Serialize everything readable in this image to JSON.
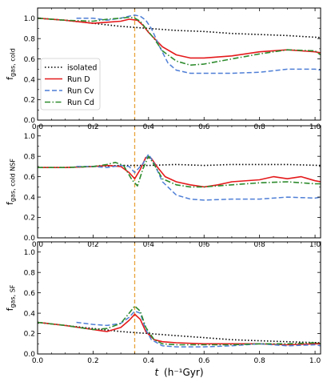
{
  "chart_data": {
    "type": "line",
    "xlabel_symbol": "t",
    "xlabel_unit": "(h⁻¹Gyr)",
    "xlim": [
      0.0,
      1.02
    ],
    "x_ticks": [
      "0.0",
      "0.2",
      "0.4",
      "0.6",
      "0.8",
      "1.0"
    ],
    "x_tick_values": [
      0.0,
      0.2,
      0.4,
      0.6,
      0.8,
      1.0
    ],
    "vline_x": 0.35,
    "colors": {
      "isolated": "#000000",
      "run_d": "#e41a1c",
      "run_cv": "#4f7fd6",
      "run_cd": "#2e8b2e",
      "vline": "#e8a33a"
    },
    "legend": {
      "placement": "left",
      "entries": [
        {
          "label": "isolated",
          "key": "isolated"
        },
        {
          "label": "Run D",
          "key": "run_d"
        },
        {
          "label": "Run Cv",
          "key": "run_cv"
        },
        {
          "label": "Run Cd",
          "key": "run_cd"
        }
      ]
    },
    "panels": [
      {
        "ylabel_main": "f",
        "ylabel_sub": "gas, cold",
        "ylim": [
          0,
          1.1
        ],
        "y_ticks": [
          "0.0",
          "0.2",
          "0.4",
          "0.6",
          "0.8",
          "1.0"
        ],
        "y_tick_values": [
          0,
          0.2,
          0.4,
          0.6,
          0.8,
          1.0
        ],
        "series": [
          {
            "key": "isolated",
            "x": [
              0.0,
              0.1,
              0.2,
              0.3,
              0.35,
              0.4,
              0.5,
              0.6,
              0.7,
              0.8,
              0.9,
              1.02
            ],
            "y": [
              1.0,
              0.98,
              0.95,
              0.92,
              0.91,
              0.9,
              0.88,
              0.87,
              0.85,
              0.84,
              0.83,
              0.81
            ]
          },
          {
            "key": "run_d",
            "x": [
              0.0,
              0.1,
              0.2,
              0.25,
              0.3,
              0.33,
              0.36,
              0.38,
              0.4,
              0.45,
              0.5,
              0.55,
              0.6,
              0.7,
              0.8,
              0.9,
              1.0,
              1.02
            ],
            "y": [
              1.0,
              0.98,
              0.95,
              0.96,
              0.97,
              0.99,
              0.98,
              0.93,
              0.86,
              0.72,
              0.64,
              0.61,
              0.61,
              0.63,
              0.67,
              0.69,
              0.67,
              0.66
            ]
          },
          {
            "key": "run_cv",
            "x": [
              0.14,
              0.2,
              0.25,
              0.3,
              0.33,
              0.35,
              0.37,
              0.39,
              0.41,
              0.44,
              0.47,
              0.5,
              0.55,
              0.6,
              0.7,
              0.8,
              0.9,
              1.0,
              1.02
            ],
            "y": [
              1.0,
              1.0,
              0.98,
              1.0,
              1.02,
              1.03,
              1.02,
              0.98,
              0.9,
              0.72,
              0.56,
              0.49,
              0.46,
              0.46,
              0.46,
              0.47,
              0.5,
              0.5,
              0.49
            ]
          },
          {
            "key": "run_cd",
            "x": [
              0.0,
              0.1,
              0.2,
              0.25,
              0.3,
              0.33,
              0.35,
              0.37,
              0.39,
              0.42,
              0.45,
              0.5,
              0.55,
              0.6,
              0.7,
              0.8,
              0.9,
              1.0,
              1.02
            ],
            "y": [
              1.0,
              0.98,
              0.97,
              0.99,
              1.0,
              1.01,
              1.0,
              0.97,
              0.9,
              0.8,
              0.68,
              0.58,
              0.54,
              0.55,
              0.6,
              0.65,
              0.69,
              0.68,
              0.64
            ]
          }
        ]
      },
      {
        "ylabel_main": "f",
        "ylabel_sub": "gas, cold NSF",
        "ylim": [
          0,
          1.1
        ],
        "y_ticks": [
          "0.0",
          "0.2",
          "0.4",
          "0.6",
          "0.8",
          "1.0"
        ],
        "y_tick_values": [
          0,
          0.2,
          0.4,
          0.6,
          0.8,
          1.0
        ],
        "series": [
          {
            "key": "isolated",
            "x": [
              0.0,
              0.1,
              0.2,
              0.3,
              0.4,
              0.5,
              0.6,
              0.7,
              0.8,
              0.9,
              1.02
            ],
            "y": [
              0.69,
              0.69,
              0.7,
              0.71,
              0.71,
              0.72,
              0.71,
              0.72,
              0.72,
              0.72,
              0.71
            ]
          },
          {
            "key": "run_d",
            "x": [
              0.0,
              0.1,
              0.2,
              0.25,
              0.3,
              0.33,
              0.35,
              0.37,
              0.39,
              0.41,
              0.43,
              0.46,
              0.5,
              0.55,
              0.6,
              0.65,
              0.7,
              0.8,
              0.85,
              0.9,
              0.95,
              1.0,
              1.02
            ],
            "y": [
              0.69,
              0.69,
              0.7,
              0.71,
              0.7,
              0.64,
              0.58,
              0.67,
              0.79,
              0.78,
              0.7,
              0.6,
              0.55,
              0.52,
              0.5,
              0.52,
              0.55,
              0.57,
              0.6,
              0.58,
              0.6,
              0.56,
              0.55
            ]
          },
          {
            "key": "run_cv",
            "x": [
              0.14,
              0.2,
              0.25,
              0.3,
              0.33,
              0.35,
              0.38,
              0.4,
              0.42,
              0.45,
              0.5,
              0.55,
              0.6,
              0.7,
              0.8,
              0.9,
              1.0,
              1.02
            ],
            "y": [
              0.7,
              0.7,
              0.69,
              0.71,
              0.7,
              0.64,
              0.73,
              0.82,
              0.73,
              0.55,
              0.42,
              0.38,
              0.37,
              0.38,
              0.38,
              0.4,
              0.39,
              0.4
            ]
          },
          {
            "key": "run_cd",
            "x": [
              0.0,
              0.1,
              0.2,
              0.25,
              0.28,
              0.31,
              0.34,
              0.36,
              0.38,
              0.4,
              0.42,
              0.45,
              0.5,
              0.55,
              0.6,
              0.7,
              0.8,
              0.9,
              1.0,
              1.02
            ],
            "y": [
              0.69,
              0.69,
              0.7,
              0.72,
              0.74,
              0.71,
              0.57,
              0.51,
              0.68,
              0.8,
              0.72,
              0.58,
              0.52,
              0.5,
              0.5,
              0.52,
              0.54,
              0.55,
              0.53,
              0.53
            ]
          }
        ]
      },
      {
        "ylabel_main": "f",
        "ylabel_sub": "gas, SF",
        "ylim": [
          0,
          1.1
        ],
        "y_ticks": [
          "0.0",
          "0.2",
          "0.4",
          "0.6",
          "0.8",
          "1.0"
        ],
        "y_tick_values": [
          0,
          0.2,
          0.4,
          0.6,
          0.8,
          1.0
        ],
        "series": [
          {
            "key": "isolated",
            "x": [
              0.0,
              0.1,
              0.2,
              0.3,
              0.35,
              0.4,
              0.5,
              0.6,
              0.7,
              0.8,
              0.9,
              1.02
            ],
            "y": [
              0.31,
              0.28,
              0.25,
              0.22,
              0.21,
              0.2,
              0.18,
              0.16,
              0.14,
              0.13,
              0.12,
              0.11
            ]
          },
          {
            "key": "run_d",
            "x": [
              0.0,
              0.1,
              0.2,
              0.25,
              0.3,
              0.33,
              0.35,
              0.37,
              0.39,
              0.42,
              0.45,
              0.5,
              0.6,
              0.7,
              0.8,
              0.9,
              1.0,
              1.02
            ],
            "y": [
              0.31,
              0.28,
              0.24,
              0.22,
              0.26,
              0.33,
              0.39,
              0.34,
              0.22,
              0.14,
              0.12,
              0.11,
              0.1,
              0.1,
              0.1,
              0.09,
              0.1,
              0.1
            ]
          },
          {
            "key": "run_cv",
            "x": [
              0.14,
              0.2,
              0.25,
              0.3,
              0.33,
              0.35,
              0.37,
              0.39,
              0.41,
              0.45,
              0.5,
              0.6,
              0.7,
              0.8,
              0.9,
              1.0,
              1.02
            ],
            "y": [
              0.31,
              0.29,
              0.28,
              0.3,
              0.36,
              0.42,
              0.4,
              0.24,
              0.14,
              0.08,
              0.07,
              0.07,
              0.08,
              0.1,
              0.08,
              0.09,
              0.08
            ]
          },
          {
            "key": "run_cd",
            "x": [
              0.0,
              0.1,
              0.2,
              0.25,
              0.3,
              0.33,
              0.35,
              0.37,
              0.39,
              0.42,
              0.45,
              0.5,
              0.6,
              0.7,
              0.8,
              0.9,
              1.0,
              1.02
            ],
            "y": [
              0.31,
              0.28,
              0.24,
              0.25,
              0.3,
              0.4,
              0.47,
              0.42,
              0.26,
              0.14,
              0.1,
              0.09,
              0.09,
              0.09,
              0.1,
              0.1,
              0.11,
              0.1
            ]
          }
        ]
      }
    ]
  }
}
